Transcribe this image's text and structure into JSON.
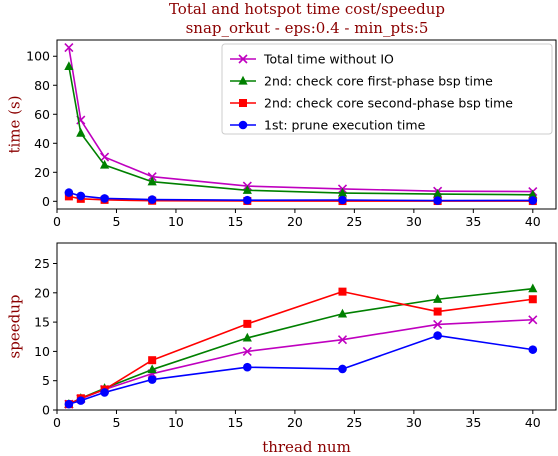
{
  "title_line1": "Total and hotspot time cost/speedup",
  "title_line2": "snap_orkut - eps:0.4 - min_pts:5",
  "colors": {
    "title": "#8b0000",
    "total": "#bf00bf",
    "core_first": "#008000",
    "core_second": "#ff0000",
    "prune": "#0000ff"
  },
  "chart_data": [
    {
      "type": "line",
      "ylabel": "time (s)",
      "xlabel": "",
      "xlim": [
        0,
        41.95
      ],
      "ylim": [
        -5.3,
        111.2
      ],
      "xticks": [
        0,
        5,
        10,
        15,
        20,
        25,
        30,
        35,
        40
      ],
      "yticks": [
        0,
        20,
        40,
        60,
        80,
        100
      ],
      "legend_position": "top-right",
      "x": [
        1,
        2,
        4,
        8,
        16,
        24,
        32,
        40
      ],
      "series": [
        {
          "name": "Total time without IO",
          "color_key": "total",
          "marker": "x",
          "values": [
            106,
            56,
            30.5,
            17,
            10.5,
            8.5,
            7,
            6.7
          ]
        },
        {
          "name": "2nd: check core first-phase bsp time",
          "color_key": "core_first",
          "marker": "triangle",
          "values": [
            93,
            47,
            25,
            13.5,
            7.6,
            5.7,
            5,
            4.5
          ]
        },
        {
          "name": "2nd: check core second-phase bsp time",
          "color_key": "core_second",
          "marker": "square",
          "values": [
            3.4,
            1.7,
            1,
            0.4,
            0.25,
            0.18,
            0.2,
            0.18
          ]
        },
        {
          "name": "1st: prune execution time",
          "color_key": "prune",
          "marker": "circle",
          "values": [
            6,
            3.7,
            2,
            1.2,
            0.8,
            0.9,
            0.5,
            0.6
          ]
        }
      ]
    },
    {
      "type": "line",
      "ylabel": "speedup",
      "xlabel": "thread num",
      "xlim": [
        0,
        41.95
      ],
      "ylim": [
        0,
        28.5
      ],
      "xticks": [
        0,
        5,
        10,
        15,
        20,
        25,
        30,
        35,
        40
      ],
      "yticks": [
        0,
        5,
        10,
        15,
        20,
        25
      ],
      "x": [
        1,
        2,
        4,
        8,
        16,
        24,
        32,
        40
      ],
      "series": [
        {
          "color_key": "total",
          "marker": "x",
          "values": [
            1,
            1.9,
            3.5,
            6.2,
            10,
            12,
            14.6,
            15.4
          ]
        },
        {
          "color_key": "core_first",
          "marker": "triangle",
          "values": [
            1,
            2,
            3.7,
            6.9,
            12.3,
            16.4,
            18.9,
            20.7
          ]
        },
        {
          "color_key": "core_second",
          "marker": "square",
          "values": [
            1,
            2,
            3.5,
            8.5,
            14.7,
            20.2,
            16.8,
            18.9
          ]
        },
        {
          "color_key": "prune",
          "marker": "circle",
          "values": [
            1,
            1.6,
            3,
            5.2,
            7.3,
            7,
            12.7,
            10.3
          ]
        }
      ]
    }
  ]
}
